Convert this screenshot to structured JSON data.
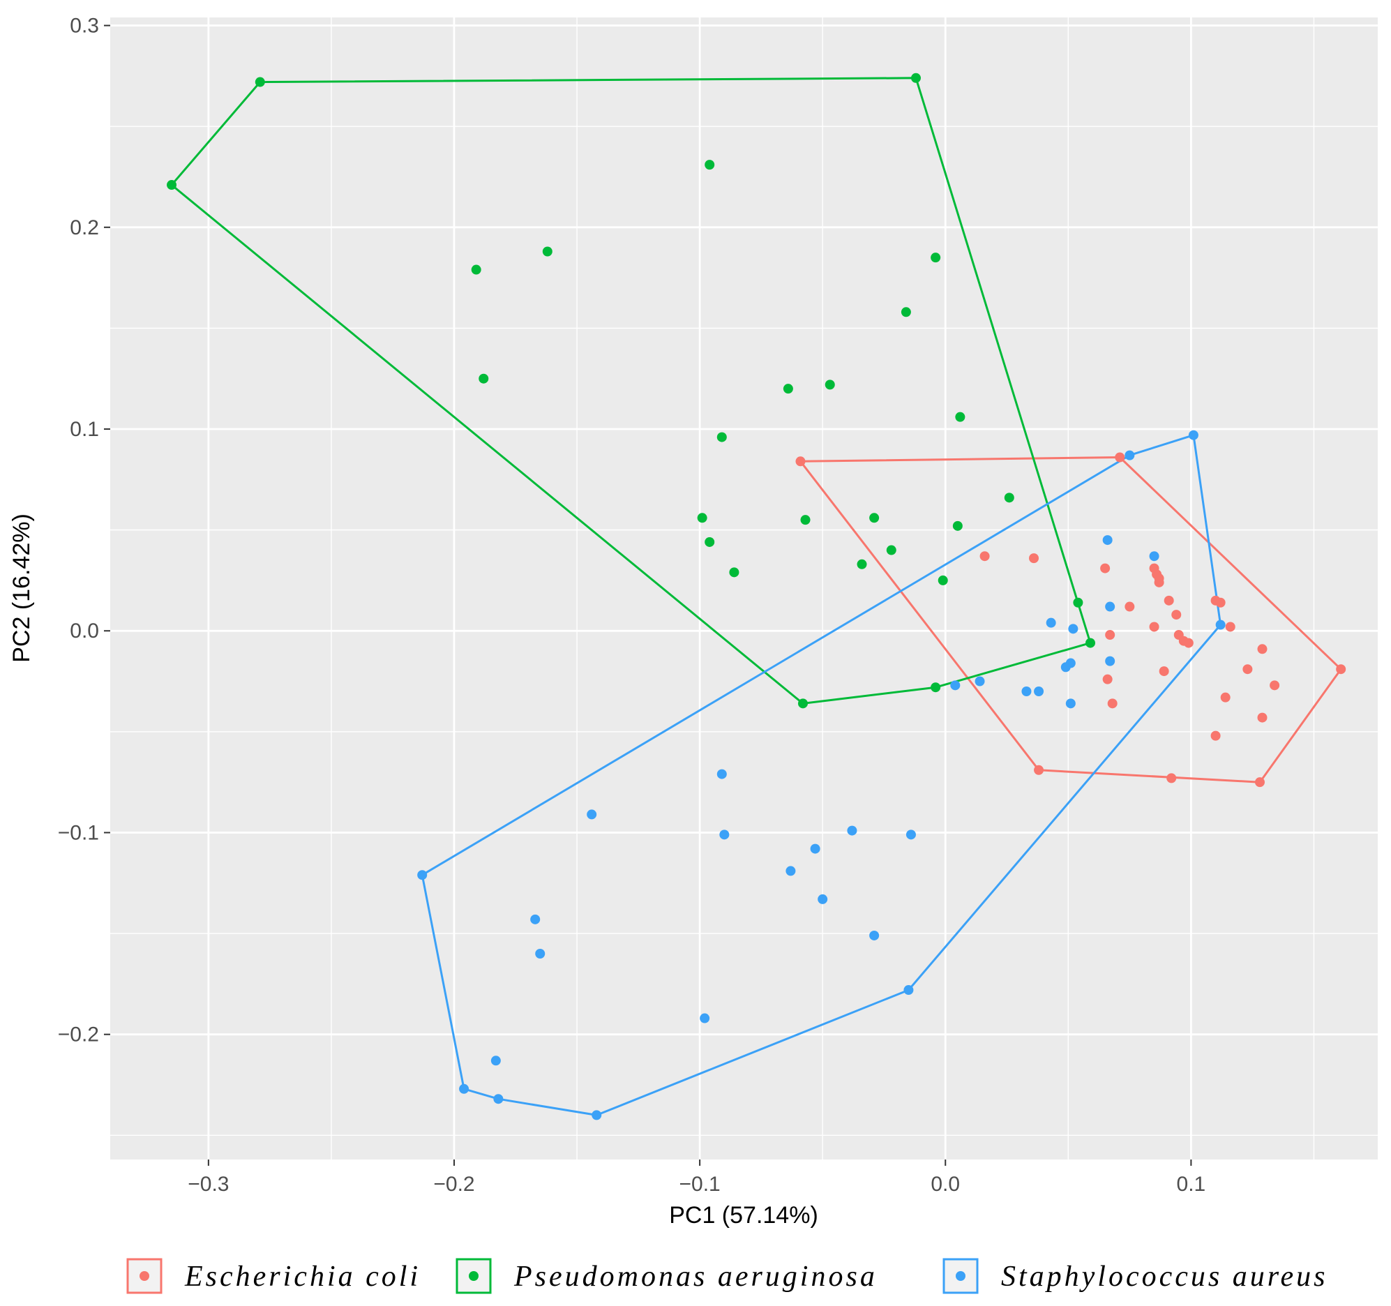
{
  "chart_data": {
    "type": "scatter",
    "title": "",
    "xlabel": "PC1 (57.14%)",
    "ylabel": "PC2 (16.42%)",
    "xlim": [
      -0.34,
      0.176
    ],
    "ylim": [
      -0.262,
      0.304
    ],
    "x_ticks": [
      -0.3,
      -0.2,
      -0.1,
      0.0,
      0.1
    ],
    "x_tick_labels": [
      "−0.3",
      "−0.2",
      "−0.1",
      "0.0",
      "0.1"
    ],
    "y_ticks": [
      -0.2,
      -0.1,
      0.0,
      0.1,
      0.2,
      0.3
    ],
    "y_tick_labels": [
      "−0.2",
      "−0.1",
      "0.0",
      "0.1",
      "0.2",
      "0.3"
    ],
    "grid": true,
    "legend_position": "bottom",
    "series": [
      {
        "name": "Escherichia coli",
        "color": "#F8766D",
        "hull": [
          [
            -0.059,
            0.084
          ],
          [
            0.071,
            0.086
          ],
          [
            0.161,
            -0.019
          ],
          [
            0.128,
            -0.075
          ],
          [
            0.038,
            -0.069
          ]
        ],
        "points": [
          [
            -0.059,
            0.084
          ],
          [
            0.071,
            0.086
          ],
          [
            0.161,
            -0.019
          ],
          [
            0.128,
            -0.075
          ],
          [
            0.038,
            -0.069
          ],
          [
            0.092,
            -0.073
          ],
          [
            0.016,
            0.037
          ],
          [
            0.036,
            0.036
          ],
          [
            0.065,
            0.031
          ],
          [
            0.075,
            0.012
          ],
          [
            0.067,
            -0.002
          ],
          [
            0.066,
            -0.024
          ],
          [
            0.068,
            -0.036
          ],
          [
            0.085,
            0.031
          ],
          [
            0.086,
            0.028
          ],
          [
            0.087,
            0.026
          ],
          [
            0.087,
            0.024
          ],
          [
            0.091,
            0.015
          ],
          [
            0.094,
            0.008
          ],
          [
            0.085,
            0.002
          ],
          [
            0.095,
            -0.002
          ],
          [
            0.097,
            -0.005
          ],
          [
            0.099,
            -0.006
          ],
          [
            0.089,
            -0.02
          ],
          [
            0.11,
            0.015
          ],
          [
            0.112,
            0.014
          ],
          [
            0.116,
            0.002
          ],
          [
            0.129,
            -0.009
          ],
          [
            0.123,
            -0.019
          ],
          [
            0.134,
            -0.027
          ],
          [
            0.114,
            -0.033
          ],
          [
            0.129,
            -0.043
          ],
          [
            0.11,
            -0.052
          ]
        ]
      },
      {
        "name": "Pseudomonas aeruginosa",
        "color": "#00BA38",
        "hull": [
          [
            -0.315,
            0.221
          ],
          [
            -0.279,
            0.272
          ],
          [
            -0.012,
            0.274
          ],
          [
            0.059,
            -0.006
          ],
          [
            -0.004,
            -0.028
          ],
          [
            -0.058,
            -0.036
          ]
        ],
        "points": [
          [
            -0.315,
            0.221
          ],
          [
            -0.279,
            0.272
          ],
          [
            -0.012,
            0.274
          ],
          [
            0.059,
            -0.006
          ],
          [
            -0.004,
            -0.028
          ],
          [
            -0.058,
            -0.036
          ],
          [
            -0.096,
            0.231
          ],
          [
            -0.162,
            0.188
          ],
          [
            -0.191,
            0.179
          ],
          [
            -0.188,
            0.125
          ],
          [
            -0.004,
            0.185
          ],
          [
            -0.016,
            0.158
          ],
          [
            -0.047,
            0.122
          ],
          [
            -0.064,
            0.12
          ],
          [
            0.006,
            0.106
          ],
          [
            -0.091,
            0.096
          ],
          [
            0.026,
            0.066
          ],
          [
            -0.099,
            0.056
          ],
          [
            -0.057,
            0.055
          ],
          [
            -0.029,
            0.056
          ],
          [
            0.005,
            0.052
          ],
          [
            -0.096,
            0.044
          ],
          [
            -0.022,
            0.04
          ],
          [
            -0.034,
            0.033
          ],
          [
            -0.086,
            0.029
          ],
          [
            -0.001,
            0.025
          ],
          [
            0.054,
            0.014
          ]
        ]
      },
      {
        "name": "Staphylococcus aureus",
        "color": "#3BA1F7",
        "hull": [
          [
            -0.213,
            -0.121
          ],
          [
            -0.196,
            -0.227
          ],
          [
            -0.182,
            -0.232
          ],
          [
            -0.142,
            -0.24
          ],
          [
            -0.015,
            -0.178
          ],
          [
            0.112,
            0.003
          ],
          [
            0.101,
            0.097
          ],
          [
            0.075,
            0.087
          ]
        ],
        "points": [
          [
            -0.213,
            -0.121
          ],
          [
            -0.196,
            -0.227
          ],
          [
            -0.182,
            -0.232
          ],
          [
            -0.142,
            -0.24
          ],
          [
            -0.015,
            -0.178
          ],
          [
            0.112,
            0.003
          ],
          [
            0.101,
            0.097
          ],
          [
            0.075,
            0.087
          ],
          [
            0.066,
            0.045
          ],
          [
            0.085,
            0.037
          ],
          [
            0.067,
            0.012
          ],
          [
            0.043,
            0.004
          ],
          [
            0.052,
            0.001
          ],
          [
            0.051,
            -0.016
          ],
          [
            0.049,
            -0.018
          ],
          [
            0.067,
            -0.015
          ],
          [
            0.014,
            -0.025
          ],
          [
            0.004,
            -0.027
          ],
          [
            0.033,
            -0.03
          ],
          [
            0.038,
            -0.03
          ],
          [
            0.051,
            -0.036
          ],
          [
            -0.091,
            -0.071
          ],
          [
            -0.144,
            -0.091
          ],
          [
            -0.09,
            -0.101
          ],
          [
            -0.038,
            -0.099
          ],
          [
            -0.014,
            -0.101
          ],
          [
            -0.053,
            -0.108
          ],
          [
            -0.063,
            -0.119
          ],
          [
            -0.05,
            -0.133
          ],
          [
            -0.167,
            -0.143
          ],
          [
            -0.165,
            -0.16
          ],
          [
            -0.029,
            -0.151
          ],
          [
            -0.098,
            -0.192
          ],
          [
            -0.183,
            -0.213
          ]
        ]
      }
    ]
  }
}
